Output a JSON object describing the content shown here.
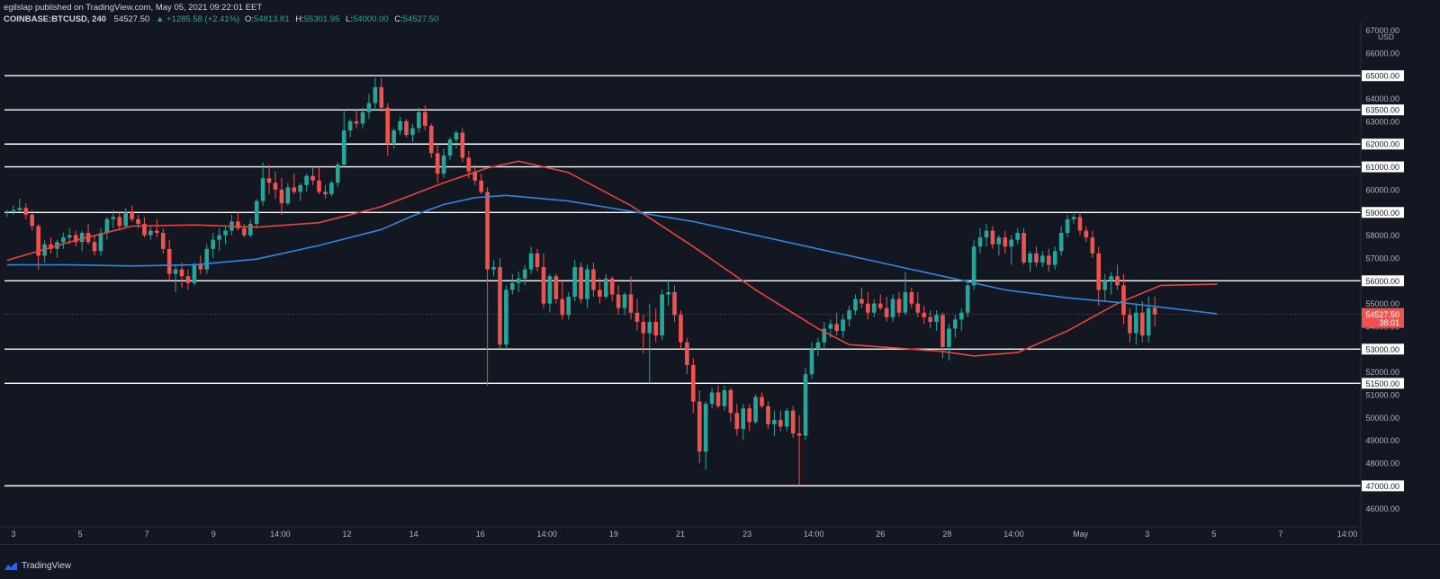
{
  "header": {
    "publisher": "egilslap published on TradingView.com, May 05, 2021 09:22:01 EET",
    "symbol": "COINBASE:BTCUSD, 240",
    "last": "54527.50",
    "change": "+1285.58 (+2.41%)",
    "o_label": "O:",
    "o": "54813.81",
    "h_label": "H:",
    "h": "55301.95",
    "l_label": "L:",
    "l": "54000.00",
    "c_label": "C:",
    "c": "54527.50"
  },
  "footer": {
    "brand": "TradingView",
    "icon": "tradingview-logo-icon"
  },
  "colors": {
    "background": "#131722",
    "up": "#26a69a",
    "down": "#ef5350",
    "ma_fast": "#e8443e",
    "ma_slow": "#2f88e0",
    "level_lines": "#ffffff",
    "text": "#d1d4dc"
  },
  "chart_data": {
    "type": "candlestick",
    "symbol": "COINBASE:BTCUSD",
    "interval": "240",
    "currency": "USD",
    "ylim": [
      45200,
      67100
    ],
    "y_ticks": [
      46000,
      47000,
      48000,
      49000,
      50000,
      51000,
      51500,
      52000,
      53000,
      54000,
      55000,
      56000,
      57000,
      58000,
      59000,
      60000,
      61000,
      62000,
      63000,
      63500,
      64000,
      65000,
      66000,
      67000
    ],
    "y_tick_labels": [
      "46000.00",
      "47000.00",
      "48000.00",
      "49000.00",
      "50000.00",
      "51000.00",
      "51500.00",
      "52000.00",
      "53000.00",
      "54000.00",
      "55000.00",
      "56000.00",
      "57000.00",
      "58000.00",
      "59000.00",
      "60000.00",
      "61000.00",
      "62000.00",
      "63000.00",
      "63500.00",
      "64000.00",
      "65000.00",
      "66000.00",
      "67000.00"
    ],
    "x_ticks": [
      "3",
      "5",
      "7",
      "9",
      "14:00",
      "12",
      "14",
      "16",
      "14:00",
      "19",
      "21",
      "23",
      "14:00",
      "26",
      "28",
      "14:00",
      "May",
      "3",
      "5",
      "7",
      "14:00"
    ],
    "horizontal_levels": [
      47000,
      51500,
      53000,
      56000,
      59000,
      61000,
      62000,
      63500,
      65000
    ],
    "current_price": {
      "value": 54527.5,
      "label": "54527.50",
      "countdown": "38:01"
    },
    "ohlc": [
      [
        59000,
        59100,
        58800,
        59050
      ],
      [
        59050,
        59300,
        58900,
        59100
      ],
      [
        59100,
        59600,
        59000,
        59200
      ],
      [
        59200,
        59400,
        58700,
        58900
      ],
      [
        58900,
        59100,
        58200,
        58400
      ],
      [
        58400,
        58500,
        56500,
        57100
      ],
      [
        57100,
        57800,
        56800,
        57600
      ],
      [
        57600,
        57900,
        57200,
        57400
      ],
      [
        57400,
        57800,
        57000,
        57700
      ],
      [
        57700,
        58100,
        57400,
        57900
      ],
      [
        57900,
        58300,
        57600,
        58000
      ],
      [
        58000,
        58200,
        57500,
        57700
      ],
      [
        57700,
        58200,
        57300,
        58100
      ],
      [
        58100,
        58500,
        57600,
        57700
      ],
      [
        57700,
        58000,
        57100,
        57300
      ],
      [
        57300,
        58300,
        57100,
        58100
      ],
      [
        58100,
        58800,
        57800,
        58700
      ],
      [
        58700,
        59100,
        58300,
        58800
      ],
      [
        58800,
        59000,
        58200,
        58400
      ],
      [
        58400,
        59200,
        58300,
        59000
      ],
      [
        59000,
        59300,
        58600,
        58700
      ],
      [
        58700,
        58900,
        58300,
        58500
      ],
      [
        58500,
        58800,
        57900,
        58000
      ],
      [
        58000,
        58400,
        57800,
        58200
      ],
      [
        58200,
        58700,
        57900,
        58100
      ],
      [
        58100,
        58300,
        57200,
        57400
      ],
      [
        57400,
        57800,
        56000,
        56300
      ],
      [
        56300,
        56700,
        55500,
        56500
      ],
      [
        56500,
        56800,
        55700,
        56200
      ],
      [
        56200,
        56500,
        55600,
        55900
      ],
      [
        55900,
        56800,
        55800,
        56700
      ],
      [
        56700,
        57100,
        56300,
        56500
      ],
      [
        56500,
        57600,
        56300,
        57400
      ],
      [
        57400,
        58100,
        57000,
        57800
      ],
      [
        57800,
        58300,
        57300,
        58000
      ],
      [
        58000,
        58400,
        57600,
        58200
      ],
      [
        58200,
        58900,
        58000,
        58600
      ],
      [
        58600,
        59000,
        58200,
        58300
      ],
      [
        58300,
        58500,
        57900,
        58000
      ],
      [
        58000,
        58700,
        57900,
        58500
      ],
      [
        58500,
        59600,
        58300,
        59500
      ],
      [
        59500,
        61200,
        59300,
        60500
      ],
      [
        60500,
        61100,
        59800,
        60300
      ],
      [
        60300,
        60800,
        59600,
        60000
      ],
      [
        60000,
        60500,
        58900,
        59400
      ],
      [
        59400,
        60300,
        59300,
        60100
      ],
      [
        60100,
        60700,
        59800,
        59900
      ],
      [
        59900,
        60300,
        59500,
        60200
      ],
      [
        60200,
        60700,
        59900,
        60600
      ],
      [
        60600,
        61000,
        60200,
        60400
      ],
      [
        60400,
        61000,
        59800,
        59900
      ],
      [
        59900,
        60200,
        59600,
        59800
      ],
      [
        59800,
        60400,
        59700,
        60300
      ],
      [
        60300,
        61200,
        60100,
        61100
      ],
      [
        61100,
        63500,
        61000,
        62600
      ],
      [
        62600,
        63100,
        62300,
        63000
      ],
      [
        63000,
        63500,
        62700,
        62900
      ],
      [
        62900,
        63600,
        62700,
        63400
      ],
      [
        63400,
        64200,
        63100,
        63800
      ],
      [
        63800,
        64900,
        63500,
        64500
      ],
      [
        64500,
        64900,
        63400,
        63600
      ],
      [
        63600,
        63800,
        61500,
        62000
      ],
      [
        62000,
        62700,
        61800,
        62600
      ],
      [
        62600,
        63200,
        62400,
        63000
      ],
      [
        63000,
        63100,
        62300,
        62400
      ],
      [
        62400,
        62900,
        62100,
        62700
      ],
      [
        62700,
        63600,
        62500,
        63400
      ],
      [
        63400,
        63700,
        62600,
        62800
      ],
      [
        62800,
        62900,
        61400,
        61600
      ],
      [
        61600,
        62000,
        60300,
        60700
      ],
      [
        60700,
        61800,
        60500,
        61500
      ],
      [
        61500,
        62300,
        61300,
        62200
      ],
      [
        62200,
        62600,
        61800,
        62500
      ],
      [
        62500,
        62700,
        61200,
        61400
      ],
      [
        61400,
        61700,
        60500,
        60800
      ],
      [
        60800,
        61100,
        60200,
        60400
      ],
      [
        60400,
        60700,
        59800,
        59900
      ],
      [
        59900,
        60100,
        51400,
        56500
      ],
      [
        56500,
        56900,
        56200,
        56600
      ],
      [
        56600,
        57000,
        53000,
        53200
      ],
      [
        53200,
        55800,
        53000,
        55600
      ],
      [
        55600,
        56300,
        55400,
        55900
      ],
      [
        55900,
        56400,
        55500,
        56100
      ],
      [
        56100,
        56700,
        55800,
        56500
      ],
      [
        56500,
        57500,
        56300,
        57200
      ],
      [
        57200,
        57400,
        56400,
        56600
      ],
      [
        56600,
        57200,
        54800,
        55000
      ],
      [
        55000,
        56300,
        54600,
        56200
      ],
      [
        56200,
        56300,
        55000,
        55200
      ],
      [
        55200,
        56000,
        54300,
        54500
      ],
      [
        54500,
        55500,
        54300,
        55300
      ],
      [
        55300,
        56900,
        55100,
        56600
      ],
      [
        56600,
        56800,
        55000,
        55200
      ],
      [
        55200,
        56700,
        54800,
        56500
      ],
      [
        56500,
        56800,
        55300,
        55600
      ],
      [
        55600,
        56100,
        55000,
        55300
      ],
      [
        55300,
        56300,
        55200,
        56100
      ],
      [
        56100,
        56200,
        55100,
        55400
      ],
      [
        55400,
        55800,
        54500,
        54800
      ],
      [
        54800,
        55500,
        54500,
        55400
      ],
      [
        55400,
        56200,
        54300,
        54600
      ],
      [
        54600,
        55200,
        53800,
        54200
      ],
      [
        54200,
        54500,
        52800,
        53700
      ],
      [
        53700,
        55000,
        51500,
        54200
      ],
      [
        54200,
        54800,
        53300,
        53600
      ],
      [
        53600,
        55600,
        53400,
        55400
      ],
      [
        55400,
        56000,
        54900,
        55500
      ],
      [
        55500,
        55800,
        54200,
        54500
      ],
      [
        54500,
        54700,
        53000,
        53300
      ],
      [
        53300,
        53500,
        51900,
        52300
      ],
      [
        52300,
        52600,
        50200,
        50700
      ],
      [
        50700,
        51200,
        48000,
        48500
      ],
      [
        48500,
        50700,
        47700,
        50600
      ],
      [
        50600,
        51300,
        50400,
        51100
      ],
      [
        51100,
        51400,
        50400,
        50500
      ],
      [
        50500,
        51400,
        50300,
        51200
      ],
      [
        51200,
        51300,
        49800,
        50200
      ],
      [
        50200,
        50600,
        49200,
        49500
      ],
      [
        49500,
        50600,
        49000,
        50400
      ],
      [
        50400,
        50600,
        49400,
        49800
      ],
      [
        49800,
        51000,
        49700,
        50900
      ],
      [
        50900,
        51100,
        50400,
        50500
      ],
      [
        50500,
        50700,
        49500,
        49700
      ],
      [
        49700,
        50300,
        49200,
        49900
      ],
      [
        49900,
        50300,
        49400,
        49600
      ],
      [
        49600,
        50400,
        49400,
        50300
      ],
      [
        50300,
        50500,
        49100,
        49300
      ],
      [
        49300,
        50100,
        47000,
        49200
      ],
      [
        49200,
        52200,
        49000,
        51900
      ],
      [
        51900,
        53300,
        51700,
        53000
      ],
      [
        53000,
        53500,
        52700,
        53300
      ],
      [
        53300,
        54200,
        53000,
        53900
      ],
      [
        53900,
        54300,
        53500,
        54100
      ],
      [
        54100,
        54600,
        53600,
        53800
      ],
      [
        53800,
        54500,
        53500,
        54300
      ],
      [
        54300,
        54900,
        54000,
        54700
      ],
      [
        54700,
        55400,
        54500,
        55200
      ],
      [
        55200,
        55700,
        54800,
        55000
      ],
      [
        55000,
        55500,
        54300,
        54600
      ],
      [
        54600,
        55200,
        54400,
        55000
      ],
      [
        55000,
        55400,
        54700,
        54800
      ],
      [
        54800,
        55300,
        54200,
        54400
      ],
      [
        54400,
        55400,
        54200,
        55200
      ],
      [
        55200,
        55500,
        54400,
        54600
      ],
      [
        54600,
        56400,
        54500,
        55500
      ],
      [
        55500,
        55700,
        54800,
        55000
      ],
      [
        55000,
        55500,
        54400,
        54600
      ],
      [
        54600,
        54900,
        54100,
        54400
      ],
      [
        54400,
        54700,
        53900,
        54200
      ],
      [
        54200,
        54700,
        53800,
        54500
      ],
      [
        54500,
        54600,
        52600,
        53100
      ],
      [
        53100,
        54100,
        52500,
        53900
      ],
      [
        53900,
        54500,
        53500,
        54300
      ],
      [
        54300,
        54800,
        53800,
        54600
      ],
      [
        54600,
        56000,
        54400,
        55800
      ],
      [
        55800,
        57800,
        55600,
        57500
      ],
      [
        57500,
        58300,
        57200,
        57900
      ],
      [
        57900,
        58500,
        57500,
        58200
      ],
      [
        58200,
        58400,
        57400,
        57600
      ],
      [
        57600,
        58000,
        57100,
        57900
      ],
      [
        57900,
        58200,
        57200,
        57500
      ],
      [
        57500,
        58000,
        56700,
        57800
      ],
      [
        57800,
        58300,
        57600,
        58100
      ],
      [
        58100,
        58300,
        56700,
        56800
      ],
      [
        56800,
        57300,
        56400,
        57200
      ],
      [
        57200,
        57500,
        56600,
        56800
      ],
      [
        56800,
        57300,
        56600,
        57100
      ],
      [
        57100,
        57400,
        56400,
        56700
      ],
      [
        56700,
        57500,
        56500,
        57300
      ],
      [
        57300,
        58400,
        57100,
        58100
      ],
      [
        58100,
        58900,
        57900,
        58700
      ],
      [
        58700,
        59000,
        58500,
        58800
      ],
      [
        58800,
        59000,
        58000,
        58200
      ],
      [
        58200,
        58400,
        57700,
        57900
      ],
      [
        57900,
        58200,
        57000,
        57200
      ],
      [
        57200,
        57500,
        54900,
        55600
      ],
      [
        55600,
        56300,
        55100,
        56000
      ],
      [
        56000,
        56400,
        55400,
        56200
      ],
      [
        56200,
        56700,
        55600,
        55800
      ],
      [
        55800,
        56300,
        54100,
        54500
      ],
      [
        54500,
        54800,
        53300,
        53700
      ],
      [
        53700,
        55000,
        53200,
        54600
      ],
      [
        54600,
        55100,
        53300,
        53600
      ],
      [
        53600,
        55300,
        53300,
        54800
      ],
      [
        54813.81,
        55301.95,
        54000,
        54527.5
      ]
    ],
    "series": [
      {
        "name": "",
        "color": "#e8443e",
        "points": [
          [
            0,
            56900
          ],
          [
            10,
            57700
          ],
          [
            20,
            58400
          ],
          [
            30,
            58450
          ],
          [
            40,
            58350
          ],
          [
            50,
            58550
          ],
          [
            60,
            59250
          ],
          [
            70,
            60300
          ],
          [
            77,
            60950
          ],
          [
            82,
            61250
          ],
          [
            90,
            60750
          ],
          [
            100,
            59300
          ],
          [
            110,
            57500
          ],
          [
            120,
            55600
          ],
          [
            130,
            53900
          ],
          [
            135,
            53200
          ],
          [
            140,
            53100
          ],
          [
            145,
            53000
          ],
          [
            150,
            52900
          ],
          [
            155,
            52700
          ],
          [
            162,
            52850
          ],
          [
            170,
            53800
          ],
          [
            178,
            55000
          ],
          [
            185,
            55800
          ],
          [
            194,
            55850
          ]
        ]
      },
      {
        "name": "",
        "color": "#2f88e0",
        "points": [
          [
            0,
            56700
          ],
          [
            10,
            56700
          ],
          [
            20,
            56650
          ],
          [
            30,
            56700
          ],
          [
            40,
            56950
          ],
          [
            50,
            57550
          ],
          [
            60,
            58250
          ],
          [
            65,
            58850
          ],
          [
            70,
            59350
          ],
          [
            75,
            59650
          ],
          [
            80,
            59750
          ],
          [
            90,
            59500
          ],
          [
            100,
            59050
          ],
          [
            110,
            58600
          ],
          [
            120,
            58000
          ],
          [
            130,
            57400
          ],
          [
            140,
            56800
          ],
          [
            150,
            56200
          ],
          [
            160,
            55600
          ],
          [
            170,
            55250
          ],
          [
            180,
            55000
          ],
          [
            194,
            54550
          ]
        ]
      }
    ]
  }
}
